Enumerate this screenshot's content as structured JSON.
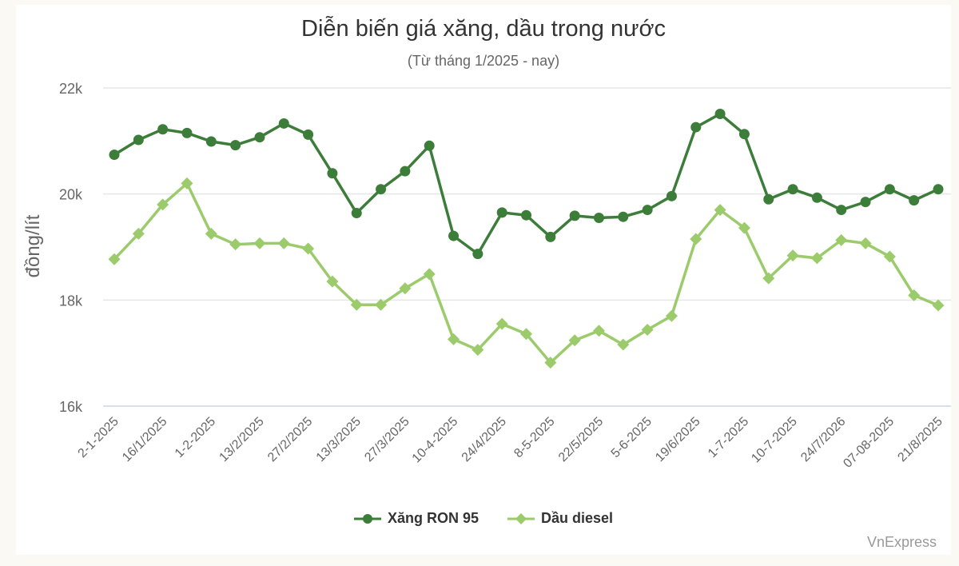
{
  "chart_data": {
    "type": "line",
    "title": "Diễn biến giá xăng, dầu trong nước",
    "subtitle": "(Từ tháng 1/2025 - nay)",
    "xlabel": "",
    "ylabel": "đồng/lít",
    "ylim": [
      16000,
      22000
    ],
    "yticks": [
      16000,
      18000,
      20000,
      22000
    ],
    "ytick_labels": [
      "16k",
      "18k",
      "20k",
      "22k"
    ],
    "grid": true,
    "legend_position": "bottom",
    "x_tick_labels": [
      "2-1-2025",
      "16/1/2025",
      "1-2-2025",
      "13/2/2025",
      "27/2/2025",
      "13/3/2025",
      "27/3/2025",
      "10-4-2025",
      "24/4/2025",
      "8-5-2025",
      "22/5/2025",
      "5-6-2025",
      "19/6/2025",
      "1-7-2025",
      "10-7-2025",
      "24/7/2026",
      "07-08-2025",
      "21/8/2025"
    ],
    "x_tick_every": 2,
    "point_count": 35,
    "series": [
      {
        "name": "Xăng RON 95",
        "color": "#3d7d3a",
        "marker": "circle",
        "values": [
          20740,
          21020,
          21220,
          21150,
          20990,
          20920,
          21070,
          21330,
          21120,
          20390,
          19640,
          20090,
          20430,
          20910,
          19210,
          18870,
          19650,
          19600,
          19190,
          19590,
          19550,
          19570,
          19700,
          19960,
          21260,
          21510,
          21130,
          19900,
          20090,
          19930,
          19700,
          19850,
          20090,
          19880,
          20090
        ]
      },
      {
        "name": "Dầu diesel",
        "color": "#9bcb6b",
        "marker": "diamond",
        "values": [
          18770,
          19250,
          19800,
          20200,
          19250,
          19050,
          19070,
          19070,
          18970,
          18350,
          17910,
          17910,
          18220,
          18490,
          17260,
          17060,
          17550,
          17360,
          16820,
          17240,
          17420,
          17160,
          17440,
          17700,
          19150,
          19700,
          19360,
          18410,
          18840,
          18790,
          19130,
          19070,
          18820,
          18090,
          17900
        ]
      }
    ]
  },
  "credit": "VnExpress"
}
